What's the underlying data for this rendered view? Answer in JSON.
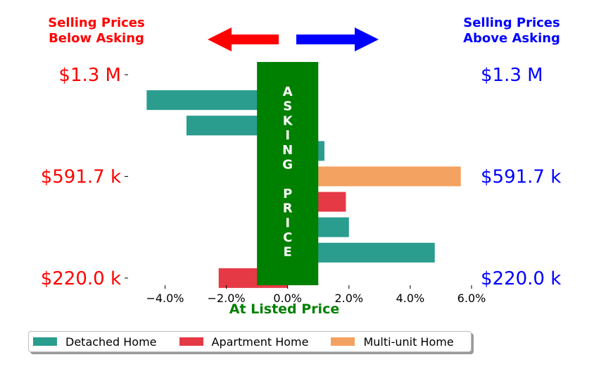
{
  "chart_data": {
    "type": "bar",
    "orientation": "horizontal",
    "header_left": [
      "Selling Prices",
      "Below Asking"
    ],
    "header_right": [
      "Selling Prices",
      "Above Asking"
    ],
    "center_band_letters": [
      "A",
      "S",
      "K",
      "I",
      "N",
      "G",
      "",
      "P",
      "R",
      "I",
      "C",
      "E"
    ],
    "xlabel": "At Listed Price",
    "x_ticks": [
      "−4.0%",
      "−2.0%",
      "0.0%",
      "2.0%",
      "4.0%",
      "6.0%"
    ],
    "x_tick_values": [
      -4,
      -2,
      0,
      2,
      4,
      6
    ],
    "xlim": [
      -4.7,
      6.0
    ],
    "band_range": [
      -1.0,
      1.0
    ],
    "y_tick_labels": [
      "$1.3 M",
      "$591.7 k",
      "$220.0 k"
    ],
    "y_tick_rows": [
      0,
      4,
      8
    ],
    "bars": [
      {
        "row": 1,
        "value": -4.6,
        "category": "Detached Home"
      },
      {
        "row": 2,
        "value": -3.3,
        "category": "Detached Home"
      },
      {
        "row": 3,
        "value": 1.2,
        "category": "Detached Home"
      },
      {
        "row": 4,
        "value": 5.65,
        "category": "Multi-unit Home"
      },
      {
        "row": 5,
        "value": 1.9,
        "category": "Apartment Home"
      },
      {
        "row": 6,
        "value": 2.0,
        "category": "Detached Home"
      },
      {
        "row": 7,
        "value": 4.8,
        "category": "Detached Home"
      },
      {
        "row": 8,
        "value": -2.25,
        "category": "Apartment Home"
      }
    ],
    "legend": [
      {
        "name": "Detached Home",
        "color": "#2a9d8f"
      },
      {
        "name": "Apartment Home",
        "color": "#e63946"
      },
      {
        "name": "Multi-unit Home",
        "color": "#f4a261"
      }
    ],
    "colors": {
      "left_text": "#ff0000",
      "right_text": "#0000ff",
      "band": "#008000",
      "band_text": "#ffffff",
      "xlabel": "#008000"
    }
  }
}
